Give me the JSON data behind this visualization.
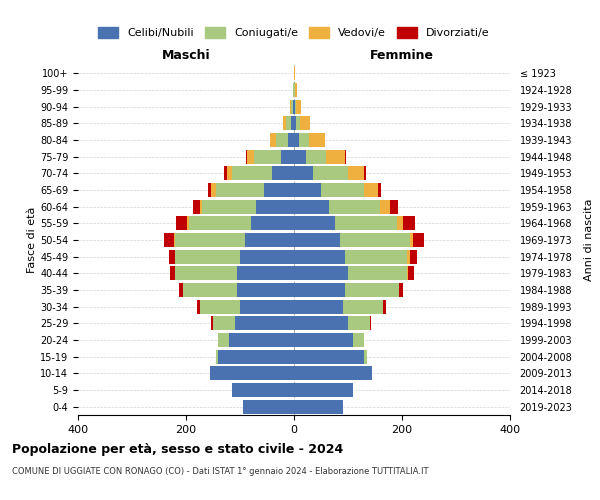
{
  "age_groups": [
    "0-4",
    "5-9",
    "10-14",
    "15-19",
    "20-24",
    "25-29",
    "30-34",
    "35-39",
    "40-44",
    "45-49",
    "50-54",
    "55-59",
    "60-64",
    "65-69",
    "70-74",
    "75-79",
    "80-84",
    "85-89",
    "90-94",
    "95-99",
    "100+"
  ],
  "birth_years": [
    "2019-2023",
    "2014-2018",
    "2009-2013",
    "2004-2008",
    "1999-2003",
    "1994-1998",
    "1989-1993",
    "1984-1988",
    "1979-1983",
    "1974-1978",
    "1969-1973",
    "1964-1968",
    "1959-1963",
    "1954-1958",
    "1949-1953",
    "1944-1948",
    "1939-1943",
    "1934-1938",
    "1929-1933",
    "1924-1928",
    "≤ 1923"
  ],
  "males": {
    "celibi": [
      95,
      115,
      155,
      140,
      120,
      110,
      100,
      105,
      105,
      100,
      90,
      80,
      70,
      55,
      40,
      25,
      12,
      5,
      2,
      0,
      0
    ],
    "coniugati": [
      0,
      0,
      0,
      5,
      20,
      40,
      75,
      100,
      115,
      120,
      130,
      115,
      100,
      90,
      75,
      50,
      22,
      10,
      3,
      1,
      0
    ],
    "vedovi": [
      0,
      0,
      0,
      0,
      0,
      0,
      0,
      0,
      0,
      0,
      2,
      3,
      5,
      8,
      10,
      12,
      10,
      5,
      3,
      1,
      0
    ],
    "divorziati": [
      0,
      0,
      0,
      0,
      0,
      3,
      5,
      8,
      10,
      12,
      18,
      20,
      12,
      6,
      5,
      2,
      0,
      0,
      0,
      0,
      0
    ]
  },
  "females": {
    "nubili": [
      90,
      110,
      145,
      130,
      110,
      100,
      90,
      95,
      100,
      95,
      85,
      75,
      65,
      50,
      35,
      22,
      10,
      4,
      1,
      0,
      0
    ],
    "coniugate": [
      0,
      0,
      0,
      5,
      20,
      40,
      75,
      100,
      110,
      115,
      130,
      115,
      95,
      80,
      65,
      38,
      17,
      7,
      2,
      1,
      0
    ],
    "vedove": [
      0,
      0,
      0,
      0,
      0,
      0,
      0,
      0,
      2,
      4,
      6,
      12,
      18,
      25,
      30,
      35,
      30,
      18,
      10,
      5,
      2
    ],
    "divorziate": [
      0,
      0,
      0,
      0,
      0,
      3,
      5,
      7,
      10,
      14,
      20,
      22,
      14,
      7,
      4,
      2,
      0,
      0,
      0,
      0,
      0
    ]
  },
  "colors": {
    "celibi": "#4a72b0",
    "coniugati": "#a8c97f",
    "vedovi": "#f0b040",
    "divorziati": "#c00000"
  },
  "title": "Popolazione per età, sesso e stato civile - 2024",
  "subtitle": "COMUNE DI UGGIATE CON RONAGO (CO) - Dati ISTAT 1° gennaio 2024 - Elaborazione TUTTITALIA.IT",
  "ylabel": "Fasce di età",
  "ylabel_right": "Anni di nascita",
  "xlabel_left": "Maschi",
  "xlabel_right": "Femmine",
  "legend_labels": [
    "Celibi/Nubili",
    "Coniugati/e",
    "Vedovi/e",
    "Divorziati/e"
  ],
  "xlim": 400,
  "background_color": "#ffffff"
}
